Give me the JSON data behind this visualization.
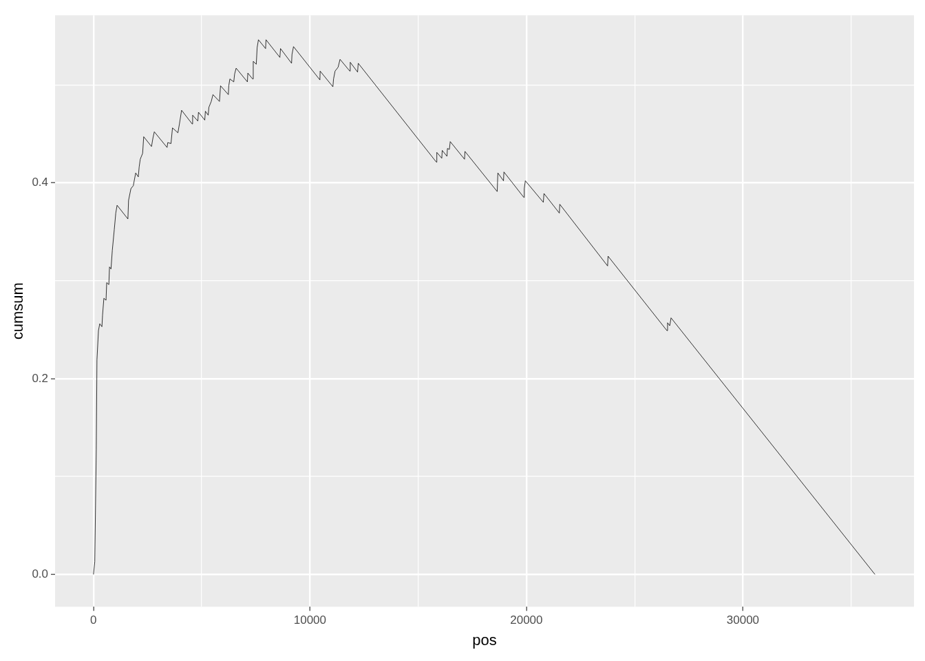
{
  "chart_data": {
    "type": "line",
    "xlabel": "pos",
    "ylabel": "cumsum",
    "grid": true,
    "xlim": [
      -1774,
      37903
    ],
    "ylim": [
      -0.033,
      0.571
    ],
    "xticks": [
      0,
      {
        "value": 5000,
        "label": null
      },
      10000,
      {
        "value": 15000,
        "label": null
      },
      20000,
      {
        "value": 25000,
        "label": null
      },
      30000,
      {
        "value": 35000,
        "label": null
      }
    ],
    "yticks": [
      {
        "value": 0,
        "label": "0.0"
      },
      {
        "value": 0.1,
        "label": null
      },
      0.2,
      {
        "value": 0.3,
        "label": null
      },
      0.4,
      {
        "value": 0.5,
        "label": null
      }
    ],
    "x": [
      0,
      60,
      130,
      160,
      230,
      290,
      390,
      420,
      480,
      580,
      610,
      710,
      740,
      810,
      870,
      960,
      1030,
      1090,
      1590,
      1620,
      1730,
      1840,
      1890,
      1950,
      2070,
      2110,
      2160,
      2270,
      2320,
      2680,
      2750,
      2810,
      3400,
      3430,
      3580,
      3650,
      3900,
      3970,
      4070,
      4560,
      4580,
      4820,
      4850,
      5140,
      5170,
      5300,
      5330,
      5440,
      5520,
      5820,
      5870,
      6230,
      6250,
      6300,
      6480,
      6520,
      6590,
      7110,
      7130,
      7350,
      7380,
      7520,
      7560,
      7620,
      7950,
      7970,
      8610,
      8640,
      9150,
      9170,
      9240,
      10460,
      10470,
      11060,
      11090,
      11160,
      11300,
      11390,
      11840,
      11860,
      12200,
      12230,
      15840,
      15860,
      16090,
      16110,
      16330,
      16350,
      16440,
      16480,
      17140,
      17160,
      18650,
      18680,
      18940,
      18960,
      19880,
      19900,
      19950,
      20780,
      20810,
      21520,
      21540,
      23750,
      23770,
      26490,
      26520,
      26620,
      26680,
      36100
    ],
    "series": [
      {
        "color": "#000000",
        "values": [
          0,
          0.013,
          0.128,
          0.219,
          0.249,
          0.256,
          0.253,
          0.265,
          0.282,
          0.28,
          0.298,
          0.296,
          0.314,
          0.312,
          0.331,
          0.352,
          0.369,
          0.377,
          0.363,
          0.382,
          0.394,
          0.397,
          0.403,
          0.41,
          0.406,
          0.416,
          0.424,
          0.43,
          0.447,
          0.437,
          0.446,
          0.452,
          0.436,
          0.441,
          0.44,
          0.456,
          0.451,
          0.46,
          0.474,
          0.46,
          0.469,
          0.463,
          0.472,
          0.464,
          0.473,
          0.469,
          0.477,
          0.483,
          0.49,
          0.483,
          0.499,
          0.49,
          0.499,
          0.506,
          0.503,
          0.511,
          0.517,
          0.503,
          0.512,
          0.506,
          0.524,
          0.521,
          0.538,
          0.546,
          0.537,
          0.546,
          0.528,
          0.537,
          0.522,
          0.531,
          0.539,
          0.505,
          0.514,
          0.498,
          0.506,
          0.514,
          0.518,
          0.526,
          0.514,
          0.523,
          0.513,
          0.522,
          0.421,
          0.431,
          0.425,
          0.433,
          0.427,
          0.435,
          0.434,
          0.442,
          0.424,
          0.432,
          0.391,
          0.41,
          0.402,
          0.411,
          0.385,
          0.394,
          0.402,
          0.38,
          0.389,
          0.369,
          0.378,
          0.315,
          0.325,
          0.249,
          0.257,
          0.254,
          0.262,
          0
        ]
      }
    ]
  }
}
